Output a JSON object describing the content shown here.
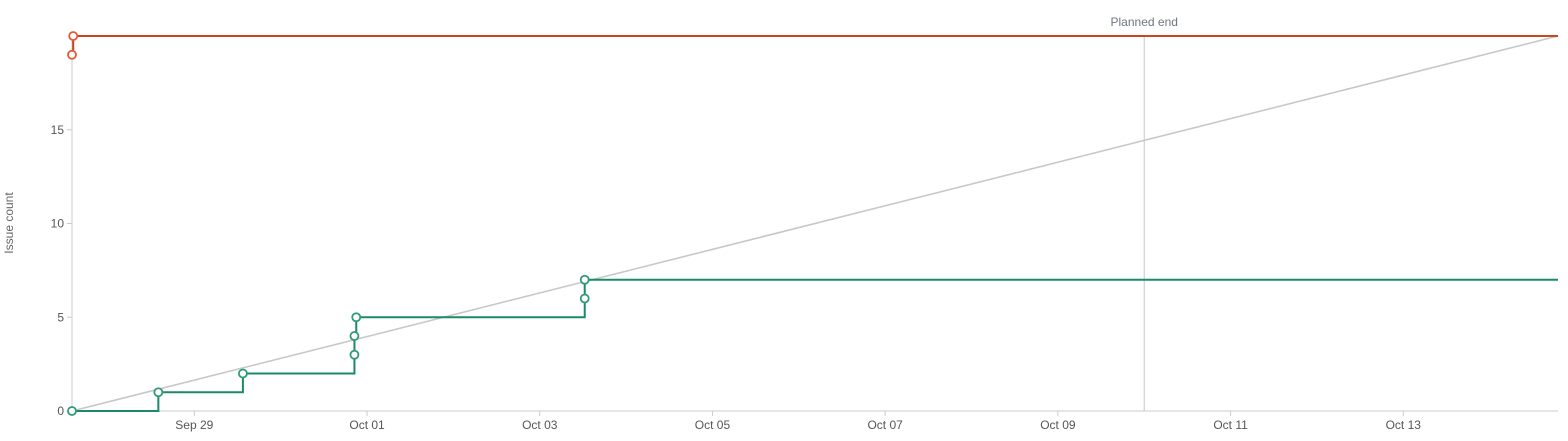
{
  "chart_data": {
    "type": "line",
    "title": "",
    "xlabel": "",
    "ylabel": "Issue count",
    "x_start": "2025-09-27T14:00",
    "x_end": "2025-10-14T19:00",
    "ylim": [
      0,
      20
    ],
    "y_ticks": [
      0,
      5,
      10,
      15
    ],
    "x_ticks": [
      {
        "date": "2025-09-29",
        "label": "Sep 29"
      },
      {
        "date": "2025-10-01",
        "label": "Oct 01"
      },
      {
        "date": "2025-10-03",
        "label": "Oct 03"
      },
      {
        "date": "2025-10-05",
        "label": "Oct 05"
      },
      {
        "date": "2025-10-07",
        "label": "Oct 07"
      },
      {
        "date": "2025-10-09",
        "label": "Oct 09"
      },
      {
        "date": "2025-10-11",
        "label": "Oct 11"
      },
      {
        "date": "2025-10-13",
        "label": "Oct 13"
      }
    ],
    "annotations": [
      {
        "label": "Planned end",
        "date": "2025-10-10T00:00"
      }
    ],
    "guideline": {
      "color": "#c8c8c8",
      "points": [
        {
          "date": "2025-09-27T14:00",
          "value": 0
        },
        {
          "date": "2025-10-14T19:00",
          "value": 20
        }
      ]
    },
    "series": [
      {
        "color": "#c8471f",
        "marker_color": "#e5583a",
        "points": [
          {
            "date": "2025-09-27T14:00",
            "value": 19
          },
          {
            "date": "2025-09-27T14:20",
            "value": 20
          }
        ],
        "extend_to_end": true
      },
      {
        "color": "#1c8a69",
        "marker_color": "#2f9a78",
        "points": [
          {
            "date": "2025-09-27T14:00",
            "value": 0
          },
          {
            "date": "2025-09-28T14:00",
            "value": 1
          },
          {
            "date": "2025-09-29T13:30",
            "value": 2
          },
          {
            "date": "2025-09-30T20:30",
            "value": 3
          },
          {
            "date": "2025-09-30T20:30",
            "value": 4
          },
          {
            "date": "2025-09-30T21:00",
            "value": 5
          },
          {
            "date": "2025-10-03T12:30",
            "value": 6
          },
          {
            "date": "2025-10-03T12:30",
            "value": 7
          }
        ],
        "extend_to_end": true
      }
    ]
  }
}
